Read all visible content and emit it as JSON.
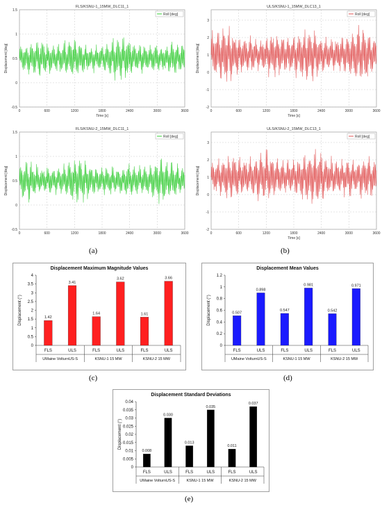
{
  "captions": {
    "a": "(a)",
    "b": "(b)",
    "c": "(c)",
    "d": "(d)",
    "e": "(e)"
  },
  "timeseries": [
    {
      "title": "FLS/KSNU-1_15MW_DLC11_1",
      "legend": "Roll [deg]",
      "ylabel": "Displacement [deg]",
      "xlabel": "Time [s]",
      "color": "#33cc33",
      "ylim": [
        -0.5,
        1.5
      ],
      "yticks": [
        "1.5",
        "1",
        "0.5",
        "0",
        "-0.5"
      ],
      "xticks": [
        "0",
        "600",
        "1200",
        "1800",
        "2400",
        "3000",
        "3600"
      ],
      "center": 0.5,
      "amp": 0.45
    },
    {
      "title": "ULS/KSNU-1_15MW_DLC13_1",
      "legend": "Roll [deg]",
      "ylabel": "Displacement [deg]",
      "xlabel": "Time [s]",
      "color": "#e05050",
      "ylim": [
        -2,
        3.6
      ],
      "yticks": [
        "3",
        "2",
        "1",
        "0",
        "-1",
        "-2"
      ],
      "xticks": [
        "0",
        "600",
        "1200",
        "1800",
        "2400",
        "3000",
        "3600"
      ],
      "center": 1.0,
      "amp": 1.6
    },
    {
      "title": "FLS/KSNU-2_15MW_DLC11_1",
      "legend": "Roll [deg]",
      "ylabel": "Displacement [deg]",
      "xlabel": "",
      "color": "#33cc33",
      "ylim": [
        -0.5,
        1.5
      ],
      "yticks": [
        "1.5",
        "1",
        "0.5",
        "0",
        "-0.5"
      ],
      "xticks": [
        "0",
        "600",
        "1200",
        "1800",
        "2400",
        "3000",
        "3600"
      ],
      "center": 0.5,
      "amp": 0.45
    },
    {
      "title": "ULS/KSNU-2_15MW_DLC13_1",
      "legend": "Roll [deg]",
      "ylabel": "Displacement [deg]",
      "xlabel": "Time [s]",
      "color": "#e05050",
      "ylim": [
        -2,
        3.6
      ],
      "yticks": [
        "3",
        "2",
        "1",
        "0",
        "-1",
        "-2"
      ],
      "xticks": [
        "0",
        "600",
        "1200",
        "1800",
        "2400",
        "3000",
        "3600"
      ],
      "center": 1.0,
      "amp": 1.6
    }
  ],
  "chart_data": [
    {
      "type": "bar",
      "title": "Displacement Maximum Magnitude Values",
      "ylabel": "Displacement (°)",
      "ylim": [
        0,
        4
      ],
      "yticks": [
        "0",
        "0.5",
        "1",
        "1.5",
        "2",
        "2.5",
        "3",
        "3.5",
        "4"
      ],
      "categories": [
        "FLS",
        "ULS",
        "FLS",
        "ULS",
        "FLS",
        "ULS"
      ],
      "groups": [
        "UMaine VolturnUS-S",
        "KSNU-1 15 MW",
        "KSNU-2 15 MW"
      ],
      "values": [
        1.42,
        3.41,
        1.64,
        3.62,
        1.61,
        3.66
      ],
      "labels": [
        "1.42",
        "3.41",
        "1.64",
        "3.62",
        "1.61",
        "3.66"
      ],
      "bar_color": "#ff2020",
      "label_colors": [
        "#e0007f",
        "#111111",
        "#e0007f",
        "#e0007f",
        "#111111",
        "#e0007f"
      ]
    },
    {
      "type": "bar",
      "title": "Displacement Mean Values",
      "ylabel": "Displacement (°)",
      "ylim": [
        0,
        1.2
      ],
      "yticks": [
        "0",
        "0.2",
        "0.4",
        "0.6",
        "0.8",
        "1",
        "1.2"
      ],
      "categories": [
        "FLS",
        "ULS",
        "FLS",
        "ULS",
        "FLS",
        "ULS"
      ],
      "groups": [
        "UMaine VolturnUS-S",
        "KSNU-1 15 MW",
        "KSNU-2 15 MW"
      ],
      "values": [
        0.507,
        0.898,
        0.547,
        0.981,
        0.542,
        0.971
      ],
      "labels": [
        "0.507",
        "0.898",
        "0.547",
        "0.981",
        "0.542",
        "0.971"
      ],
      "bar_color": "#1a1aff",
      "label_colors": [
        "#111111",
        "#111111",
        "#111111",
        "#111111",
        "#111111",
        "#111111"
      ]
    },
    {
      "type": "bar",
      "title": "Displacement Standard Deviations",
      "ylabel": "Displacement (°)",
      "ylim": [
        0,
        0.04
      ],
      "yticks": [
        "0",
        "0.005",
        "0.01",
        "0.015",
        "0.02",
        "0.025",
        "0.03",
        "0.035",
        "0.04"
      ],
      "categories": [
        "FLS",
        "ULS",
        "FLS",
        "ULS",
        "FLS",
        "ULS"
      ],
      "groups": [
        "UMaine VolturnUS-S",
        "KSNU-1 15 MW",
        "KSNU-2 15 MW"
      ],
      "values": [
        0.008,
        0.03,
        0.013,
        0.035,
        0.011,
        0.037
      ],
      "labels": [
        "0.008",
        "0.030",
        "0.013",
        "0.035",
        "0.011",
        "0.037"
      ],
      "bar_color": "#000000",
      "label_colors": [
        "#111111",
        "#111111",
        "#111111",
        "#111111",
        "#111111",
        "#111111"
      ]
    }
  ]
}
